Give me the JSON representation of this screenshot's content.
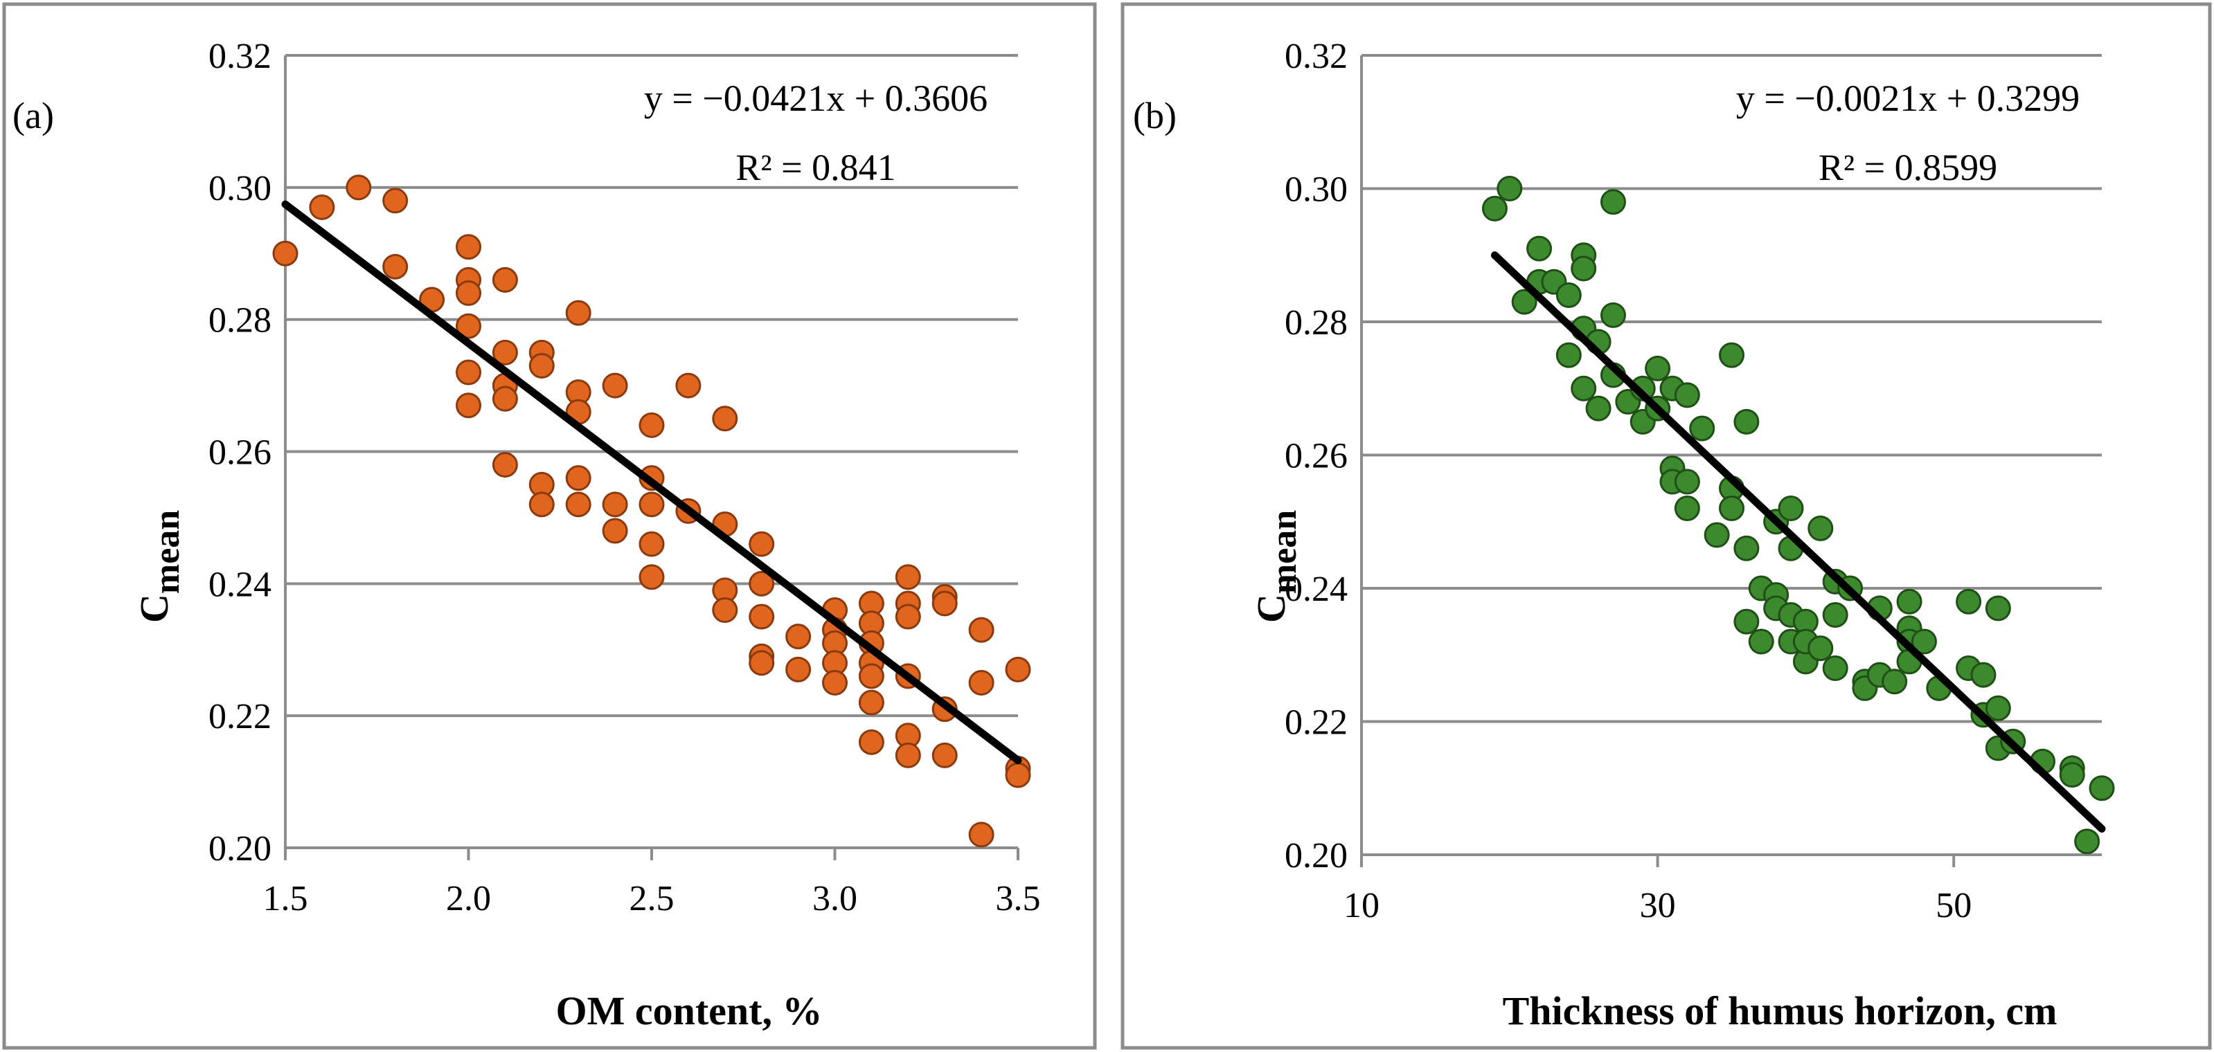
{
  "chart_data": [
    {
      "type": "scatter",
      "panel_label": "(a)",
      "xlabel": "OM content, %",
      "ylabel_main": "C",
      "ylabel_sub": "mean",
      "xlim": [
        1.5,
        3.5
      ],
      "ylim": [
        0.2,
        0.32
      ],
      "xticks": [
        "1.5",
        "2.0",
        "2.5",
        "3.0",
        "3.5"
      ],
      "yticks": [
        "0.20",
        "0.22",
        "0.24",
        "0.26",
        "0.28",
        "0.30",
        "0.32"
      ],
      "trendline": {
        "slope": -0.0421,
        "intercept": 0.3606
      },
      "equation": "y = −0.0421x + 0.3606",
      "r2": "R² = 0.841",
      "marker_color": "#e0661f",
      "marker_edge": "#8a3a0e",
      "points": [
        [
          1.5,
          0.29
        ],
        [
          1.6,
          0.297
        ],
        [
          1.7,
          0.3
        ],
        [
          1.8,
          0.298
        ],
        [
          1.8,
          0.288
        ],
        [
          1.9,
          0.283
        ],
        [
          2.0,
          0.291
        ],
        [
          2.0,
          0.286
        ],
        [
          2.0,
          0.284
        ],
        [
          2.0,
          0.279
        ],
        [
          2.0,
          0.272
        ],
        [
          2.0,
          0.267
        ],
        [
          2.1,
          0.286
        ],
        [
          2.1,
          0.275
        ],
        [
          2.1,
          0.27
        ],
        [
          2.1,
          0.268
        ],
        [
          2.1,
          0.258
        ],
        [
          2.2,
          0.275
        ],
        [
          2.2,
          0.273
        ],
        [
          2.2,
          0.255
        ],
        [
          2.2,
          0.252
        ],
        [
          2.3,
          0.281
        ],
        [
          2.3,
          0.269
        ],
        [
          2.3,
          0.266
        ],
        [
          2.3,
          0.256
        ],
        [
          2.3,
          0.252
        ],
        [
          2.4,
          0.27
        ],
        [
          2.4,
          0.252
        ],
        [
          2.4,
          0.248
        ],
        [
          2.5,
          0.264
        ],
        [
          2.5,
          0.256
        ],
        [
          2.5,
          0.252
        ],
        [
          2.5,
          0.246
        ],
        [
          2.5,
          0.241
        ],
        [
          2.6,
          0.27
        ],
        [
          2.6,
          0.251
        ],
        [
          2.7,
          0.265
        ],
        [
          2.7,
          0.249
        ],
        [
          2.7,
          0.239
        ],
        [
          2.7,
          0.236
        ],
        [
          2.8,
          0.246
        ],
        [
          2.8,
          0.24
        ],
        [
          2.8,
          0.235
        ],
        [
          2.8,
          0.229
        ],
        [
          2.8,
          0.228
        ],
        [
          2.9,
          0.232
        ],
        [
          2.9,
          0.227
        ],
        [
          3.0,
          0.236
        ],
        [
          3.0,
          0.233
        ],
        [
          3.0,
          0.231
        ],
        [
          3.0,
          0.228
        ],
        [
          3.0,
          0.225
        ],
        [
          3.1,
          0.237
        ],
        [
          3.1,
          0.234
        ],
        [
          3.1,
          0.231
        ],
        [
          3.1,
          0.228
        ],
        [
          3.1,
          0.226
        ],
        [
          3.1,
          0.222
        ],
        [
          3.1,
          0.216
        ],
        [
          3.2,
          0.241
        ],
        [
          3.2,
          0.237
        ],
        [
          3.2,
          0.235
        ],
        [
          3.2,
          0.226
        ],
        [
          3.2,
          0.217
        ],
        [
          3.2,
          0.214
        ],
        [
          3.3,
          0.238
        ],
        [
          3.3,
          0.237
        ],
        [
          3.3,
          0.221
        ],
        [
          3.3,
          0.214
        ],
        [
          3.4,
          0.233
        ],
        [
          3.4,
          0.225
        ],
        [
          3.4,
          0.202
        ],
        [
          3.5,
          0.227
        ],
        [
          3.5,
          0.212
        ],
        [
          3.5,
          0.211
        ]
      ]
    },
    {
      "type": "scatter",
      "panel_label": "(b)",
      "xlabel": "Thickness of humus horizon, cm",
      "ylabel_main": "C",
      "ylabel_sub": "mean",
      "xlim": [
        10,
        60
      ],
      "ylim": [
        0.2,
        0.32
      ],
      "xticks": [
        "10",
        "30",
        "50"
      ],
      "xtick_values": [
        10,
        30,
        50
      ],
      "yticks": [
        "0.20",
        "0.22",
        "0.24",
        "0.26",
        "0.28",
        "0.30",
        "0.32"
      ],
      "trendline": {
        "slope": -0.0021,
        "intercept": 0.3299,
        "x_from": 19,
        "x_to": 60
      },
      "equation": "y = −0.0021x + 0.3299",
      "r2": "R² = 0.8599",
      "marker_color": "#3d8a2e",
      "marker_edge": "#1f4f16",
      "points": [
        [
          19,
          0.297
        ],
        [
          20,
          0.3
        ],
        [
          21,
          0.283
        ],
        [
          22,
          0.291
        ],
        [
          22,
          0.286
        ],
        [
          23,
          0.286
        ],
        [
          24,
          0.284
        ],
        [
          24,
          0.275
        ],
        [
          25,
          0.29
        ],
        [
          25,
          0.288
        ],
        [
          25,
          0.279
        ],
        [
          25,
          0.27
        ],
        [
          26,
          0.267
        ],
        [
          26,
          0.277
        ],
        [
          27,
          0.298
        ],
        [
          27,
          0.281
        ],
        [
          27,
          0.272
        ],
        [
          28,
          0.268
        ],
        [
          29,
          0.27
        ],
        [
          29,
          0.265
        ],
        [
          30,
          0.273
        ],
        [
          30,
          0.267
        ],
        [
          31,
          0.27
        ],
        [
          31,
          0.258
        ],
        [
          31,
          0.256
        ],
        [
          32,
          0.269
        ],
        [
          32,
          0.256
        ],
        [
          32,
          0.252
        ],
        [
          33,
          0.264
        ],
        [
          34,
          0.248
        ],
        [
          35,
          0.275
        ],
        [
          35,
          0.255
        ],
        [
          35,
          0.252
        ],
        [
          36,
          0.265
        ],
        [
          36,
          0.246
        ],
        [
          36,
          0.235
        ],
        [
          37,
          0.24
        ],
        [
          37,
          0.232
        ],
        [
          38,
          0.25
        ],
        [
          38,
          0.239
        ],
        [
          38,
          0.237
        ],
        [
          39,
          0.252
        ],
        [
          39,
          0.246
        ],
        [
          39,
          0.236
        ],
        [
          39,
          0.232
        ],
        [
          40,
          0.235
        ],
        [
          40,
          0.229
        ],
        [
          40,
          0.232
        ],
        [
          41,
          0.249
        ],
        [
          41,
          0.231
        ],
        [
          42,
          0.241
        ],
        [
          42,
          0.236
        ],
        [
          42,
          0.228
        ],
        [
          43,
          0.24
        ],
        [
          44,
          0.226
        ],
        [
          44,
          0.225
        ],
        [
          45,
          0.237
        ],
        [
          45,
          0.227
        ],
        [
          46,
          0.226
        ],
        [
          47,
          0.238
        ],
        [
          47,
          0.234
        ],
        [
          47,
          0.232
        ],
        [
          47,
          0.229
        ],
        [
          48,
          0.232
        ],
        [
          49,
          0.225
        ],
        [
          51,
          0.238
        ],
        [
          51,
          0.228
        ],
        [
          52,
          0.227
        ],
        [
          52,
          0.221
        ],
        [
          53,
          0.237
        ],
        [
          53,
          0.222
        ],
        [
          53,
          0.216
        ],
        [
          54,
          0.217
        ],
        [
          56,
          0.214
        ],
        [
          58,
          0.213
        ],
        [
          58,
          0.212
        ],
        [
          59,
          0.202
        ],
        [
          60,
          0.21
        ]
      ]
    }
  ]
}
